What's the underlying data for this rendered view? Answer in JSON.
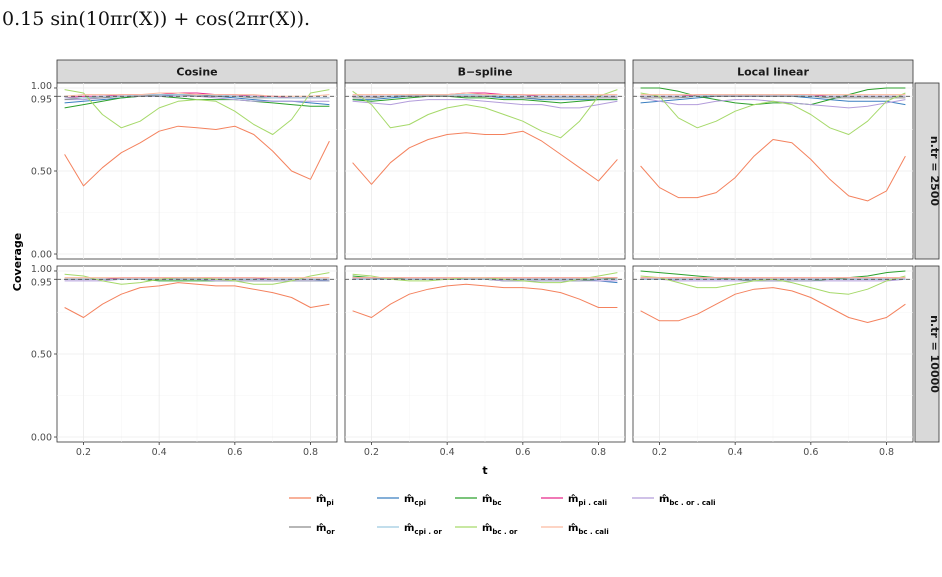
{
  "caption": "0.15 sin(10πr(X)) + cos(2πr(X)).",
  "chart_data": {
    "type": "line",
    "ylabel": "Coverage",
    "xlabel": "t",
    "xlim": [
      0.13,
      0.87
    ],
    "ylim": [
      -0.03,
      1.03
    ],
    "x_ticks": [
      0.2,
      0.4,
      0.6,
      0.8
    ],
    "x_tick_labels": [
      "0.2",
      "0.4",
      "0.6",
      "0.8"
    ],
    "y_ticks": [
      0.0,
      0.5,
      0.95,
      1.0
    ],
    "y_tick_labels": [
      "0.00",
      "0.50",
      "0.95",
      "1.00"
    ],
    "reference_line": 0.95,
    "columns": [
      "Cosine",
      "B−spline",
      "Local linear"
    ],
    "rows": [
      "n.tr = 2500",
      "n.tr = 10000"
    ],
    "legend_position": "bottom",
    "series_styles": [
      {
        "key": "pi",
        "label": "m̂",
        "sub": "pi",
        "color": "#f4825e"
      },
      {
        "key": "cpi",
        "label": "m̂",
        "sub": "cpi",
        "color": "#3a7fc0"
      },
      {
        "key": "bc",
        "label": "m̂",
        "sub": "bc",
        "color": "#2ca02c"
      },
      {
        "key": "pi_cali",
        "label": "m̂",
        "sub": "pi . cali",
        "color": "#e7298a"
      },
      {
        "key": "bc_or_cali",
        "label": "m̂",
        "sub": "bc . or . cali",
        "color": "#b39ddb"
      },
      {
        "key": "or",
        "label": "m̂",
        "sub": "or",
        "color": "#8c8c8c"
      },
      {
        "key": "cpi_or",
        "label": "m̂",
        "sub": "cpi . or",
        "color": "#9ecae1"
      },
      {
        "key": "bc_or",
        "label": "m̂",
        "sub": "bc . or",
        "color": "#a6d96a"
      },
      {
        "key": "bc_cali",
        "label": "m̂",
        "sub": "bc . cali",
        "color": "#fcbba1"
      }
    ],
    "x": [
      0.15,
      0.2,
      0.25,
      0.3,
      0.35,
      0.4,
      0.45,
      0.5,
      0.55,
      0.6,
      0.65,
      0.7,
      0.75,
      0.8,
      0.85
    ],
    "panels": [
      {
        "row": 0,
        "col": 0,
        "series": {
          "pi": [
            0.6,
            0.41,
            0.52,
            0.61,
            0.67,
            0.74,
            0.77,
            0.76,
            0.75,
            0.77,
            0.72,
            0.62,
            0.5,
            0.45,
            0.68
          ],
          "cpi": [
            0.91,
            0.92,
            0.93,
            0.94,
            0.95,
            0.95,
            0.96,
            0.96,
            0.95,
            0.94,
            0.93,
            0.92,
            0.92,
            0.91,
            0.9
          ],
          "bc": [
            0.88,
            0.9,
            0.92,
            0.94,
            0.95,
            0.95,
            0.94,
            0.93,
            0.93,
            0.93,
            0.92,
            0.91,
            0.9,
            0.89,
            0.89
          ],
          "pi_cali": [
            0.94,
            0.95,
            0.95,
            0.96,
            0.96,
            0.96,
            0.97,
            0.97,
            0.96,
            0.96,
            0.95,
            0.95,
            0.94,
            0.94,
            0.94
          ],
          "bc_or_cali": [
            0.93,
            0.93,
            0.94,
            0.95,
            0.95,
            0.95,
            0.95,
            0.95,
            0.94,
            0.93,
            0.92,
            0.92,
            0.92,
            0.92,
            0.92
          ],
          "or": [
            0.93,
            0.94,
            0.94,
            0.95,
            0.95,
            0.96,
            0.96,
            0.95,
            0.95,
            0.95,
            0.94,
            0.94,
            0.94,
            0.94,
            0.94
          ],
          "cpi_or": [
            0.94,
            0.94,
            0.95,
            0.95,
            0.96,
            0.96,
            0.96,
            0.96,
            0.96,
            0.95,
            0.95,
            0.94,
            0.94,
            0.94,
            0.94
          ],
          "bc_or": [
            0.99,
            0.97,
            0.84,
            0.76,
            0.8,
            0.88,
            0.92,
            0.93,
            0.92,
            0.86,
            0.78,
            0.72,
            0.81,
            0.97,
            0.99
          ],
          "bc_cali": [
            0.95,
            0.96,
            0.96,
            0.96,
            0.96,
            0.97,
            0.97,
            0.96,
            0.96,
            0.96,
            0.96,
            0.95,
            0.95,
            0.95,
            0.96
          ]
        }
      },
      {
        "row": 0,
        "col": 1,
        "series": {
          "pi": [
            0.55,
            0.42,
            0.55,
            0.64,
            0.69,
            0.72,
            0.73,
            0.72,
            0.72,
            0.74,
            0.68,
            0.6,
            0.52,
            0.44,
            0.57
          ],
          "cpi": [
            0.93,
            0.93,
            0.94,
            0.95,
            0.95,
            0.95,
            0.95,
            0.95,
            0.94,
            0.94,
            0.93,
            0.93,
            0.93,
            0.93,
            0.93
          ],
          "bc": [
            0.93,
            0.92,
            0.93,
            0.94,
            0.95,
            0.95,
            0.94,
            0.94,
            0.93,
            0.93,
            0.92,
            0.91,
            0.92,
            0.93,
            0.93
          ],
          "pi_cali": [
            0.95,
            0.95,
            0.95,
            0.96,
            0.96,
            0.96,
            0.97,
            0.97,
            0.96,
            0.96,
            0.95,
            0.95,
            0.95,
            0.95,
            0.95
          ],
          "bc_or_cali": [
            0.92,
            0.91,
            0.9,
            0.92,
            0.93,
            0.93,
            0.93,
            0.92,
            0.91,
            0.9,
            0.9,
            0.88,
            0.88,
            0.9,
            0.92
          ],
          "or": [
            0.94,
            0.94,
            0.95,
            0.95,
            0.95,
            0.95,
            0.95,
            0.95,
            0.95,
            0.94,
            0.94,
            0.94,
            0.94,
            0.94,
            0.94
          ],
          "cpi_or": [
            0.95,
            0.95,
            0.95,
            0.96,
            0.96,
            0.96,
            0.96,
            0.96,
            0.95,
            0.95,
            0.95,
            0.95,
            0.95,
            0.95,
            0.95
          ],
          "bc_or": [
            0.98,
            0.9,
            0.76,
            0.78,
            0.84,
            0.88,
            0.9,
            0.88,
            0.84,
            0.8,
            0.74,
            0.7,
            0.8,
            0.95,
            0.99
          ],
          "bc_cali": [
            0.96,
            0.96,
            0.96,
            0.96,
            0.96,
            0.96,
            0.97,
            0.96,
            0.96,
            0.96,
            0.96,
            0.96,
            0.96,
            0.96,
            0.96
          ]
        }
      },
      {
        "row": 0,
        "col": 2,
        "series": {
          "pi": [
            0.53,
            0.4,
            0.34,
            0.34,
            0.37,
            0.46,
            0.59,
            0.69,
            0.67,
            0.57,
            0.45,
            0.35,
            0.32,
            0.38,
            0.59
          ],
          "cpi": [
            0.91,
            0.92,
            0.93,
            0.94,
            0.95,
            0.95,
            0.95,
            0.95,
            0.95,
            0.94,
            0.93,
            0.92,
            0.92,
            0.92,
            0.9
          ],
          "bc": [
            1.0,
            1.0,
            0.98,
            0.95,
            0.93,
            0.91,
            0.9,
            0.91,
            0.91,
            0.9,
            0.93,
            0.96,
            0.99,
            1.0,
            1.0
          ],
          "pi_cali": [
            0.95,
            0.95,
            0.95,
            0.96,
            0.96,
            0.96,
            0.96,
            0.96,
            0.96,
            0.96,
            0.95,
            0.95,
            0.95,
            0.95,
            0.95
          ],
          "bc_or_cali": [
            0.94,
            0.92,
            0.9,
            0.9,
            0.92,
            0.93,
            0.93,
            0.92,
            0.91,
            0.9,
            0.89,
            0.88,
            0.89,
            0.91,
            0.93
          ],
          "or": [
            0.94,
            0.94,
            0.94,
            0.95,
            0.95,
            0.95,
            0.95,
            0.95,
            0.95,
            0.95,
            0.94,
            0.94,
            0.94,
            0.94,
            0.94
          ],
          "cpi_or": [
            0.95,
            0.95,
            0.95,
            0.95,
            0.96,
            0.96,
            0.96,
            0.96,
            0.96,
            0.95,
            0.95,
            0.95,
            0.95,
            0.95,
            0.95
          ],
          "bc_or": [
            0.97,
            0.95,
            0.82,
            0.76,
            0.8,
            0.86,
            0.9,
            0.92,
            0.9,
            0.84,
            0.76,
            0.72,
            0.8,
            0.92,
            0.97
          ],
          "bc_cali": [
            0.96,
            0.96,
            0.96,
            0.96,
            0.96,
            0.96,
            0.96,
            0.96,
            0.96,
            0.96,
            0.96,
            0.96,
            0.96,
            0.96,
            0.96
          ]
        }
      },
      {
        "row": 1,
        "col": 0,
        "series": {
          "pi": [
            0.78,
            0.72,
            0.8,
            0.86,
            0.9,
            0.91,
            0.93,
            0.92,
            0.91,
            0.91,
            0.89,
            0.87,
            0.84,
            0.78,
            0.8
          ],
          "cpi": [
            0.95,
            0.95,
            0.95,
            0.95,
            0.95,
            0.95,
            0.96,
            0.96,
            0.95,
            0.95,
            0.95,
            0.95,
            0.95,
            0.95,
            0.94
          ],
          "bc": [
            0.95,
            0.95,
            0.95,
            0.95,
            0.95,
            0.94,
            0.94,
            0.94,
            0.94,
            0.94,
            0.94,
            0.94,
            0.94,
            0.94,
            0.94
          ],
          "pi_cali": [
            0.95,
            0.95,
            0.95,
            0.96,
            0.96,
            0.96,
            0.96,
            0.96,
            0.96,
            0.96,
            0.96,
            0.95,
            0.95,
            0.95,
            0.95
          ],
          "bc_or_cali": [
            0.94,
            0.94,
            0.94,
            0.95,
            0.95,
            0.95,
            0.95,
            0.95,
            0.94,
            0.94,
            0.94,
            0.94,
            0.94,
            0.94,
            0.94
          ],
          "or": [
            0.95,
            0.95,
            0.95,
            0.95,
            0.95,
            0.95,
            0.95,
            0.95,
            0.95,
            0.95,
            0.95,
            0.95,
            0.95,
            0.95,
            0.95
          ],
          "cpi_or": [
            0.95,
            0.95,
            0.95,
            0.95,
            0.95,
            0.95,
            0.95,
            0.95,
            0.95,
            0.95,
            0.95,
            0.95,
            0.95,
            0.95,
            0.95
          ],
          "bc_or": [
            0.98,
            0.97,
            0.94,
            0.92,
            0.93,
            0.95,
            0.96,
            0.96,
            0.95,
            0.94,
            0.92,
            0.92,
            0.94,
            0.97,
            0.99
          ],
          "bc_cali": [
            0.96,
            0.96,
            0.96,
            0.96,
            0.96,
            0.96,
            0.96,
            0.96,
            0.96,
            0.96,
            0.96,
            0.96,
            0.96,
            0.96,
            0.96
          ]
        }
      },
      {
        "row": 1,
        "col": 1,
        "series": {
          "pi": [
            0.76,
            0.72,
            0.8,
            0.86,
            0.89,
            0.91,
            0.92,
            0.91,
            0.9,
            0.9,
            0.89,
            0.87,
            0.83,
            0.78,
            0.78
          ],
          "cpi": [
            0.96,
            0.96,
            0.95,
            0.95,
            0.95,
            0.95,
            0.95,
            0.95,
            0.95,
            0.95,
            0.95,
            0.95,
            0.95,
            0.94,
            0.93
          ],
          "bc": [
            0.97,
            0.96,
            0.96,
            0.95,
            0.95,
            0.95,
            0.95,
            0.95,
            0.94,
            0.94,
            0.94,
            0.94,
            0.94,
            0.95,
            0.96
          ],
          "pi_cali": [
            0.96,
            0.96,
            0.96,
            0.96,
            0.96,
            0.96,
            0.96,
            0.96,
            0.96,
            0.96,
            0.96,
            0.96,
            0.96,
            0.96,
            0.96
          ],
          "bc_or_cali": [
            0.95,
            0.95,
            0.95,
            0.95,
            0.95,
            0.95,
            0.95,
            0.95,
            0.94,
            0.94,
            0.94,
            0.94,
            0.94,
            0.94,
            0.94
          ],
          "or": [
            0.95,
            0.95,
            0.95,
            0.95,
            0.95,
            0.95,
            0.95,
            0.95,
            0.95,
            0.95,
            0.95,
            0.95,
            0.95,
            0.95,
            0.95
          ],
          "cpi_or": [
            0.95,
            0.95,
            0.95,
            0.95,
            0.95,
            0.95,
            0.95,
            0.95,
            0.95,
            0.95,
            0.95,
            0.95,
            0.95,
            0.95,
            0.95
          ],
          "bc_or": [
            0.98,
            0.97,
            0.95,
            0.94,
            0.94,
            0.95,
            0.96,
            0.96,
            0.95,
            0.94,
            0.93,
            0.93,
            0.95,
            0.97,
            0.99
          ],
          "bc_cali": [
            0.96,
            0.96,
            0.96,
            0.96,
            0.96,
            0.96,
            0.96,
            0.96,
            0.96,
            0.96,
            0.96,
            0.96,
            0.96,
            0.96,
            0.96
          ]
        }
      },
      {
        "row": 1,
        "col": 2,
        "series": {
          "pi": [
            0.76,
            0.7,
            0.7,
            0.74,
            0.8,
            0.86,
            0.89,
            0.9,
            0.88,
            0.84,
            0.78,
            0.72,
            0.69,
            0.72,
            0.8
          ],
          "cpi": [
            0.95,
            0.95,
            0.95,
            0.95,
            0.95,
            0.95,
            0.95,
            0.95,
            0.95,
            0.95,
            0.95,
            0.95,
            0.95,
            0.95,
            0.95
          ],
          "bc": [
            1.0,
            0.99,
            0.98,
            0.97,
            0.96,
            0.95,
            0.94,
            0.94,
            0.94,
            0.94,
            0.95,
            0.96,
            0.97,
            0.99,
            1.0
          ],
          "pi_cali": [
            0.96,
            0.96,
            0.96,
            0.96,
            0.96,
            0.96,
            0.96,
            0.96,
            0.96,
            0.96,
            0.96,
            0.96,
            0.96,
            0.96,
            0.96
          ],
          "bc_or_cali": [
            0.95,
            0.95,
            0.94,
            0.94,
            0.94,
            0.94,
            0.94,
            0.94,
            0.94,
            0.94,
            0.94,
            0.94,
            0.94,
            0.94,
            0.95
          ],
          "or": [
            0.95,
            0.95,
            0.95,
            0.95,
            0.95,
            0.95,
            0.95,
            0.95,
            0.95,
            0.95,
            0.95,
            0.95,
            0.95,
            0.95,
            0.95
          ],
          "cpi_or": [
            0.95,
            0.95,
            0.95,
            0.95,
            0.95,
            0.95,
            0.95,
            0.95,
            0.95,
            0.95,
            0.95,
            0.95,
            0.95,
            0.95,
            0.95
          ],
          "bc_or": [
            0.97,
            0.96,
            0.93,
            0.9,
            0.9,
            0.92,
            0.94,
            0.95,
            0.93,
            0.9,
            0.87,
            0.86,
            0.89,
            0.94,
            0.97
          ],
          "bc_cali": [
            0.96,
            0.96,
            0.96,
            0.96,
            0.96,
            0.96,
            0.96,
            0.96,
            0.96,
            0.96,
            0.96,
            0.96,
            0.96,
            0.96,
            0.96
          ]
        }
      }
    ]
  }
}
